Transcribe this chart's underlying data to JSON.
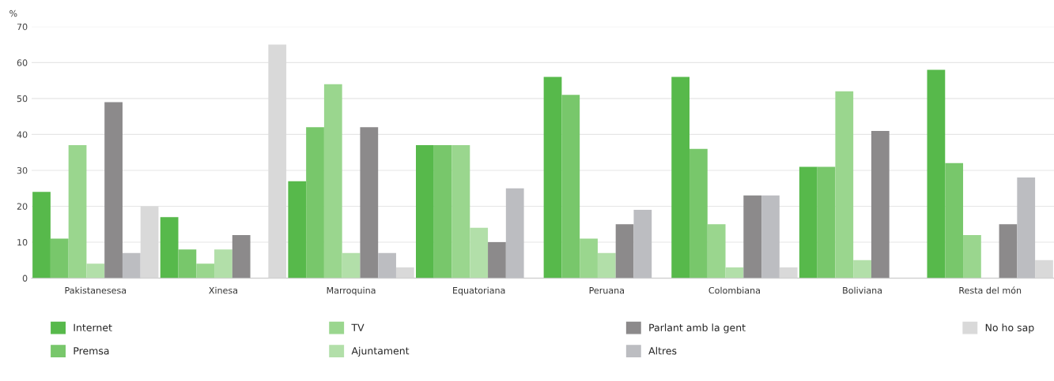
{
  "chart_data": {
    "type": "bar",
    "ylabel": "%",
    "categories": [
      "Pakistanesesa",
      "Xinesa",
      "Marroquina",
      "Equatoriana",
      "Peruana",
      "Colombiana",
      "Boliviana",
      "Resta del món"
    ],
    "series": [
      {
        "name": "Internet",
        "color": "#57b94b",
        "values": [
          24,
          17,
          27,
          37,
          56,
          56,
          31,
          58
        ]
      },
      {
        "name": "Premsa",
        "color": "#78c76b",
        "values": [
          11,
          8,
          42,
          37,
          51,
          36,
          31,
          32
        ]
      },
      {
        "name": "TV",
        "color": "#9ad68e",
        "values": [
          37,
          4,
          54,
          37,
          11,
          15,
          52,
          12
        ]
      },
      {
        "name": "Ajuntament",
        "color": "#b2dfa9",
        "values": [
          4,
          8,
          7,
          14,
          7,
          3,
          5,
          null
        ]
      },
      {
        "name": "Parlant amb la gent",
        "color": "#8c8a8b",
        "values": [
          49,
          12,
          42,
          10,
          15,
          23,
          41,
          15
        ]
      },
      {
        "name": "Altres",
        "color": "#bcbdc1",
        "values": [
          7,
          null,
          7,
          25,
          19,
          23,
          null,
          28
        ]
      },
      {
        "name": "No ho sap",
        "color": "#d9d9d9",
        "values": [
          20,
          65,
          3,
          null,
          null,
          3,
          null,
          5
        ]
      }
    ],
    "ylim": [
      0,
      70
    ],
    "yticks": [
      0,
      10,
      20,
      30,
      40,
      50,
      60,
      70
    ],
    "grid": "y",
    "legend": "bottom"
  }
}
